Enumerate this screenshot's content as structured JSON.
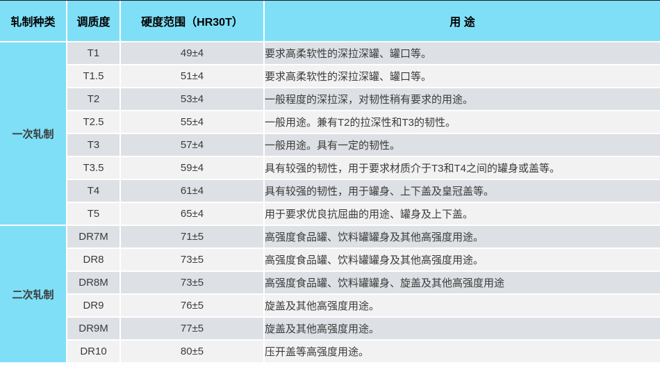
{
  "table": {
    "headers": [
      "轧制种类",
      "调质度",
      "硬度范围（HR30T）",
      "用 途"
    ],
    "groups": [
      {
        "label": "一次轧制",
        "rows": [
          {
            "grade": "T1",
            "hardness": "49±4",
            "usage": "要求高柔软性的深拉深罐、罐口等。"
          },
          {
            "grade": "T1.5",
            "hardness": "51±4",
            "usage": "要求高柔软性的深拉深罐、罐口等。"
          },
          {
            "grade": "T2",
            "hardness": "53±4",
            "usage": "一般程度的深拉深，对韧性稍有要求的用途。"
          },
          {
            "grade": "T2.5",
            "hardness": "55±4",
            "usage": "一般用途。兼有T2的拉深性和T3的韧性。"
          },
          {
            "grade": "T3",
            "hardness": "57±4",
            "usage": "一般用途。具有一定的韧性。"
          },
          {
            "grade": "T3.5",
            "hardness": "59±4",
            "usage": "具有较强的韧性，用于要求材质介于T3和T4之间的罐身或盖等。"
          },
          {
            "grade": "T4",
            "hardness": "61±4",
            "usage": "具有较强的韧性，用于罐身、上下盖及皇冠盖等。"
          },
          {
            "grade": "T5",
            "hardness": "65±4",
            "usage": "用于要求优良抗屈曲的用途、罐身及上下盖。"
          }
        ]
      },
      {
        "label": "二次轧制",
        "rows": [
          {
            "grade": "DR7M",
            "hardness": "71±5",
            "usage": "高强度食品罐、饮料罐罐身及其他高强度用途。"
          },
          {
            "grade": "DR8",
            "hardness": "73±5",
            "usage": "高强度食品罐、饮料罐罐身及其他高强度用途。"
          },
          {
            "grade": "DR8M",
            "hardness": "73±5",
            "usage": "高强度食品罐、饮料罐罐身、旋盖及其他高强度用途"
          },
          {
            "grade": "DR9",
            "hardness": "76±5",
            "usage": "旋盖及其他高强度用途。"
          },
          {
            "grade": "DR9M",
            "hardness": "77±5",
            "usage": "旋盖及其他高强度用途。"
          },
          {
            "grade": "DR10",
            "hardness": "80±5",
            "usage": "压开盖等高强度用途。"
          }
        ]
      }
    ]
  },
  "colors": {
    "accent_cyan": "#7fdff7",
    "row_dark": "#dde0e4",
    "row_light": "#f2f2f2",
    "separator": "#ffffff",
    "top_border": "#1a1a1a",
    "header_text": "#000000",
    "body_text": "#3b3b3b"
  }
}
